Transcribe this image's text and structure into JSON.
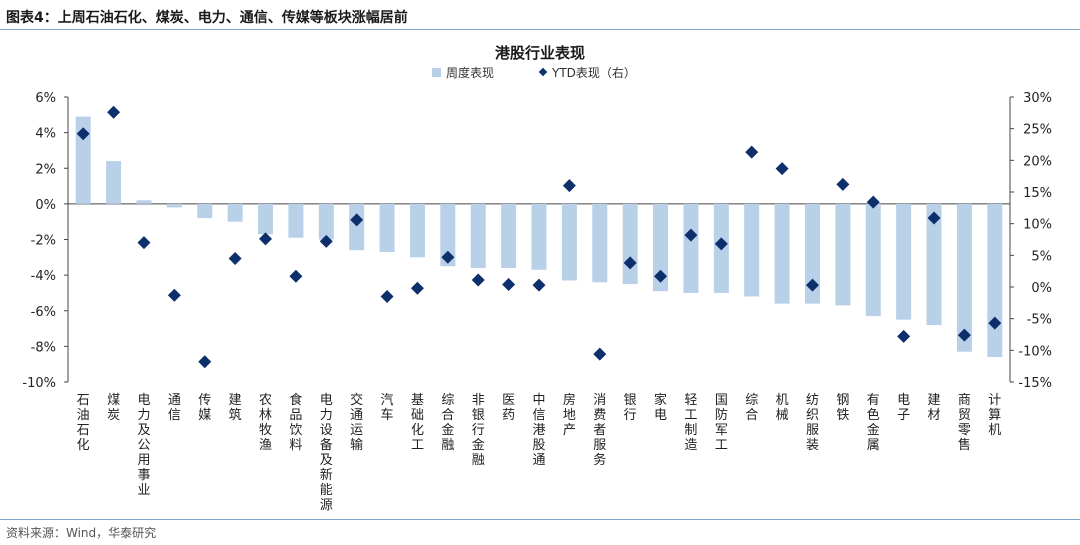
{
  "figure": {
    "label": "图表4：",
    "caption": "上周石油石化、煤炭、电力、通信、传媒等板块涨幅居前",
    "source": "资料来源：Wind，华泰研究"
  },
  "chart_data": {
    "type": "bar+scatter",
    "title": "港股行业表现",
    "categories": [
      "石油石化",
      "煤炭",
      "电力及公用事业",
      "通信",
      "传媒",
      "建筑",
      "农林牧渔",
      "食品饮料",
      "电力设备及新能源",
      "交通运输",
      "汽车",
      "基础化工",
      "综合金融",
      "非银行金融",
      "医药",
      "中信港股通",
      "房地产",
      "消费者服务",
      "银行",
      "家电",
      "轻工制造",
      "国防军工",
      "综合",
      "机械",
      "纺织服装",
      "钢铁",
      "有色金属",
      "电子",
      "建材",
      "商贸零售",
      "计算机"
    ],
    "series": [
      {
        "name": "周度表现",
        "type": "bar",
        "axis": "left",
        "values": [
          4.9,
          2.4,
          0.2,
          -0.2,
          -0.8,
          -1.0,
          -1.7,
          -1.9,
          -2.0,
          -2.6,
          -2.7,
          -3.0,
          -3.5,
          -3.6,
          -3.6,
          -3.7,
          -4.3,
          -4.4,
          -4.5,
          -4.9,
          -5.0,
          -5.0,
          -5.2,
          -5.6,
          -5.6,
          -5.7,
          -6.3,
          -6.5,
          -6.8,
          -8.3,
          -8.6
        ]
      },
      {
        "name": "YTD表现（右）",
        "type": "scatter",
        "axis": "right",
        "values": [
          24.2,
          27.6,
          7.0,
          -1.3,
          -11.8,
          4.5,
          7.6,
          1.7,
          7.2,
          10.6,
          -1.5,
          -0.2,
          4.7,
          1.1,
          0.4,
          0.3,
          16.0,
          -10.6,
          3.8,
          1.7,
          8.2,
          6.8,
          21.3,
          18.7,
          0.3,
          16.2,
          13.4,
          -7.8,
          10.9,
          -7.6,
          -5.7
        ]
      }
    ],
    "y_left": {
      "min": -10,
      "max": 6,
      "step": 2,
      "ticks": [
        "6%",
        "4%",
        "2%",
        "0%",
        "-2%",
        "-4%",
        "-6%",
        "-8%",
        "-10%"
      ]
    },
    "y_right": {
      "min": -15,
      "max": 30,
      "step": 5,
      "ticks": [
        "30%",
        "25%",
        "20%",
        "15%",
        "10%",
        "5%",
        "0%",
        "-5%",
        "-10%",
        "-15%"
      ]
    },
    "legend_position": "top-center",
    "colors": {
      "bar": "#b8d0e8",
      "marker": "#0d2f6b",
      "axis": "#444444"
    }
  }
}
